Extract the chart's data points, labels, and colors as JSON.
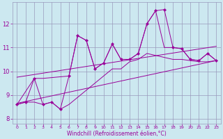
{
  "xlabel": "Windchill (Refroidissement éolien,°C)",
  "bg_color": "#cce8f0",
  "line_color": "#990099",
  "grid_color": "#9999bb",
  "xlim": [
    -0.5,
    23.5
  ],
  "ylim": [
    7.8,
    12.9
  ],
  "xticks": [
    0,
    1,
    2,
    3,
    4,
    5,
    6,
    7,
    8,
    9,
    10,
    11,
    12,
    13,
    14,
    15,
    16,
    17,
    18,
    19,
    20,
    21,
    22,
    23
  ],
  "yticks": [
    8,
    9,
    10,
    11,
    12
  ],
  "main_x": [
    0,
    1,
    2,
    3,
    4,
    5,
    6,
    7,
    8,
    9,
    10,
    11,
    12,
    13,
    14,
    15,
    16,
    17,
    18,
    19,
    20,
    21,
    22,
    23
  ],
  "main_y": [
    8.6,
    8.7,
    9.7,
    8.6,
    8.7,
    8.4,
    9.8,
    11.5,
    11.3,
    10.1,
    10.35,
    11.15,
    10.5,
    10.5,
    10.75,
    12.0,
    12.55,
    12.6,
    11.0,
    10.95,
    10.5,
    10.45,
    10.75,
    10.45
  ],
  "upper_x": [
    0,
    2,
    3,
    6,
    7,
    8,
    9,
    10,
    11,
    12,
    13,
    14,
    15,
    16,
    17,
    18,
    19,
    20,
    21,
    22,
    23
  ],
  "upper_y": [
    8.6,
    9.7,
    9.7,
    9.8,
    11.5,
    11.3,
    10.1,
    10.35,
    11.15,
    10.5,
    10.5,
    10.75,
    12.0,
    12.55,
    11.0,
    11.0,
    10.95,
    10.5,
    10.45,
    10.75,
    10.45
  ],
  "lower_x": [
    0,
    1,
    2,
    3,
    4,
    5,
    6,
    10,
    11,
    12,
    13,
    14,
    15,
    18,
    19,
    20,
    21,
    22,
    23
  ],
  "lower_y": [
    8.6,
    8.7,
    8.7,
    8.6,
    8.7,
    8.4,
    8.6,
    9.8,
    10.1,
    10.1,
    10.4,
    10.5,
    10.75,
    10.5,
    10.5,
    10.45,
    10.4,
    10.4,
    10.45
  ],
  "trend1_x": [
    0,
    23
  ],
  "trend1_y": [
    8.65,
    10.45
  ],
  "trend2_x": [
    0,
    23
  ],
  "trend2_y": [
    9.75,
    11.05
  ]
}
